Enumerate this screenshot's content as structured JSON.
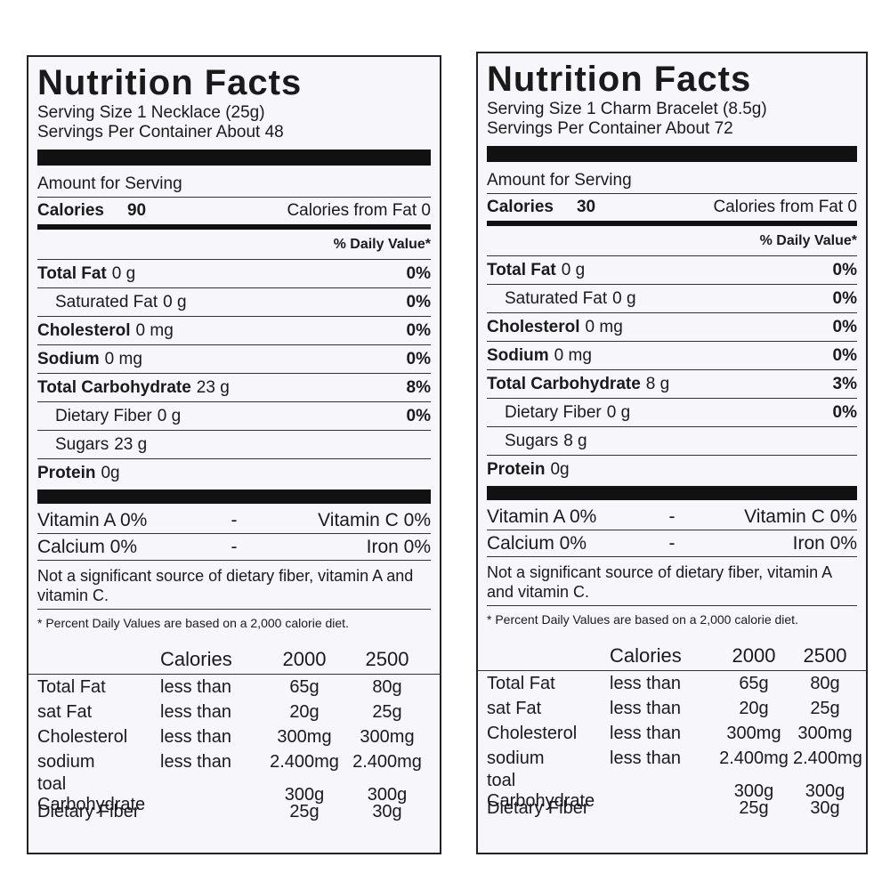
{
  "labels": [
    {
      "title": "Nutrition Facts",
      "serving_size": "Serving Size 1 Necklace (25g)",
      "servings_per_container": "Servings Per Container About 48",
      "amount_for_serving": "Amount for Serving",
      "calories_label": "Calories",
      "calories_value": "90",
      "calories_from_fat": "Calories from Fat 0",
      "daily_value_header": "% Daily Value*",
      "nutrients": [
        {
          "name": "Total Fat",
          "amount": "0 g",
          "dv": "0%",
          "sub": false
        },
        {
          "name": "Saturated Fat",
          "amount": "0 g",
          "dv": "0%",
          "sub": true
        },
        {
          "name": "Cholesterol",
          "amount": "0 mg",
          "dv": "0%",
          "sub": false
        },
        {
          "name": "Sodium",
          "amount": "0 mg",
          "dv": "0%",
          "sub": false
        },
        {
          "name": "Total Carbohydrate",
          "amount": "23 g",
          "dv": "8%",
          "sub": false
        },
        {
          "name": "Dietary Fiber",
          "amount": "0 g",
          "dv": "0%",
          "sub": true
        },
        {
          "name": "Sugars",
          "amount": "23 g",
          "dv": null,
          "sub": true
        }
      ],
      "protein": {
        "name": "Protein",
        "amount": "0g"
      },
      "vitamins": [
        [
          "Vitamin A 0%",
          "-",
          "Vitamin C 0%"
        ],
        [
          "Calcium 0%",
          "-",
          "Iron 0%"
        ]
      ],
      "note": "Not a significant source of dietary fiber, vitamin A and vitamin C.",
      "footnote": "* Percent Daily Values are based on a 2,000 calorie diet.",
      "reference_header": [
        "Calories",
        "2000",
        "2500"
      ],
      "reference_rows": [
        [
          "Total Fat",
          "less than",
          "65g",
          "80g"
        ],
        [
          "sat Fat",
          "less than",
          "20g",
          "25g"
        ],
        [
          "Cholesterol",
          "less than",
          "300mg",
          "300mg"
        ],
        [
          "sodium",
          "less than",
          "2.400mg",
          "2.400mg"
        ],
        [
          "toal Carbohydrate",
          null,
          "300g",
          "300g"
        ],
        [
          "Dietary Fiber",
          null,
          "25g",
          "30g"
        ]
      ]
    },
    {
      "title": "Nutrition Facts",
      "serving_size": "Serving Size 1 Charm Bracelet (8.5g)",
      "servings_per_container": "Servings Per Container About 72",
      "amount_for_serving": "Amount for Serving",
      "calories_label": "Calories",
      "calories_value": "30",
      "calories_from_fat": "Calories from Fat 0",
      "daily_value_header": "% Daily Value*",
      "nutrients": [
        {
          "name": "Total Fat",
          "amount": "0 g",
          "dv": "0%",
          "sub": false
        },
        {
          "name": "Saturated Fat",
          "amount": "0 g",
          "dv": "0%",
          "sub": true
        },
        {
          "name": "Cholesterol",
          "amount": "0 mg",
          "dv": "0%",
          "sub": false
        },
        {
          "name": "Sodium",
          "amount": "0 mg",
          "dv": "0%",
          "sub": false
        },
        {
          "name": "Total Carbohydrate",
          "amount": "8 g",
          "dv": "3%",
          "sub": false
        },
        {
          "name": "Dietary Fiber",
          "amount": "0 g",
          "dv": "0%",
          "sub": true
        },
        {
          "name": "Sugars",
          "amount": "8 g",
          "dv": null,
          "sub": true
        }
      ],
      "protein": {
        "name": "Protein",
        "amount": "0g"
      },
      "vitamins": [
        [
          "Vitamin A 0%",
          "-",
          "Vitamin C 0%"
        ],
        [
          "Calcium 0%",
          "-",
          "Iron 0%"
        ]
      ],
      "note": "Not a significant source of dietary fiber, vitamin A and vitamin C.",
      "footnote": "* Percent Daily Values are based on a 2,000 calorie diet.",
      "reference_header": [
        "Calories",
        "2000",
        "2500"
      ],
      "reference_rows": [
        [
          "Total Fat",
          "less than",
          "65g",
          "80g"
        ],
        [
          "sat Fat",
          "less than",
          "20g",
          "25g"
        ],
        [
          "Cholesterol",
          "less than",
          "300mg",
          "300mg"
        ],
        [
          "sodium",
          "less than",
          "2.400mg",
          "2.400mg"
        ],
        [
          "toal Carbohydrate",
          null,
          "300g",
          "300g"
        ],
        [
          "Dietary Fiber",
          null,
          "25g",
          "30g"
        ]
      ]
    }
  ]
}
